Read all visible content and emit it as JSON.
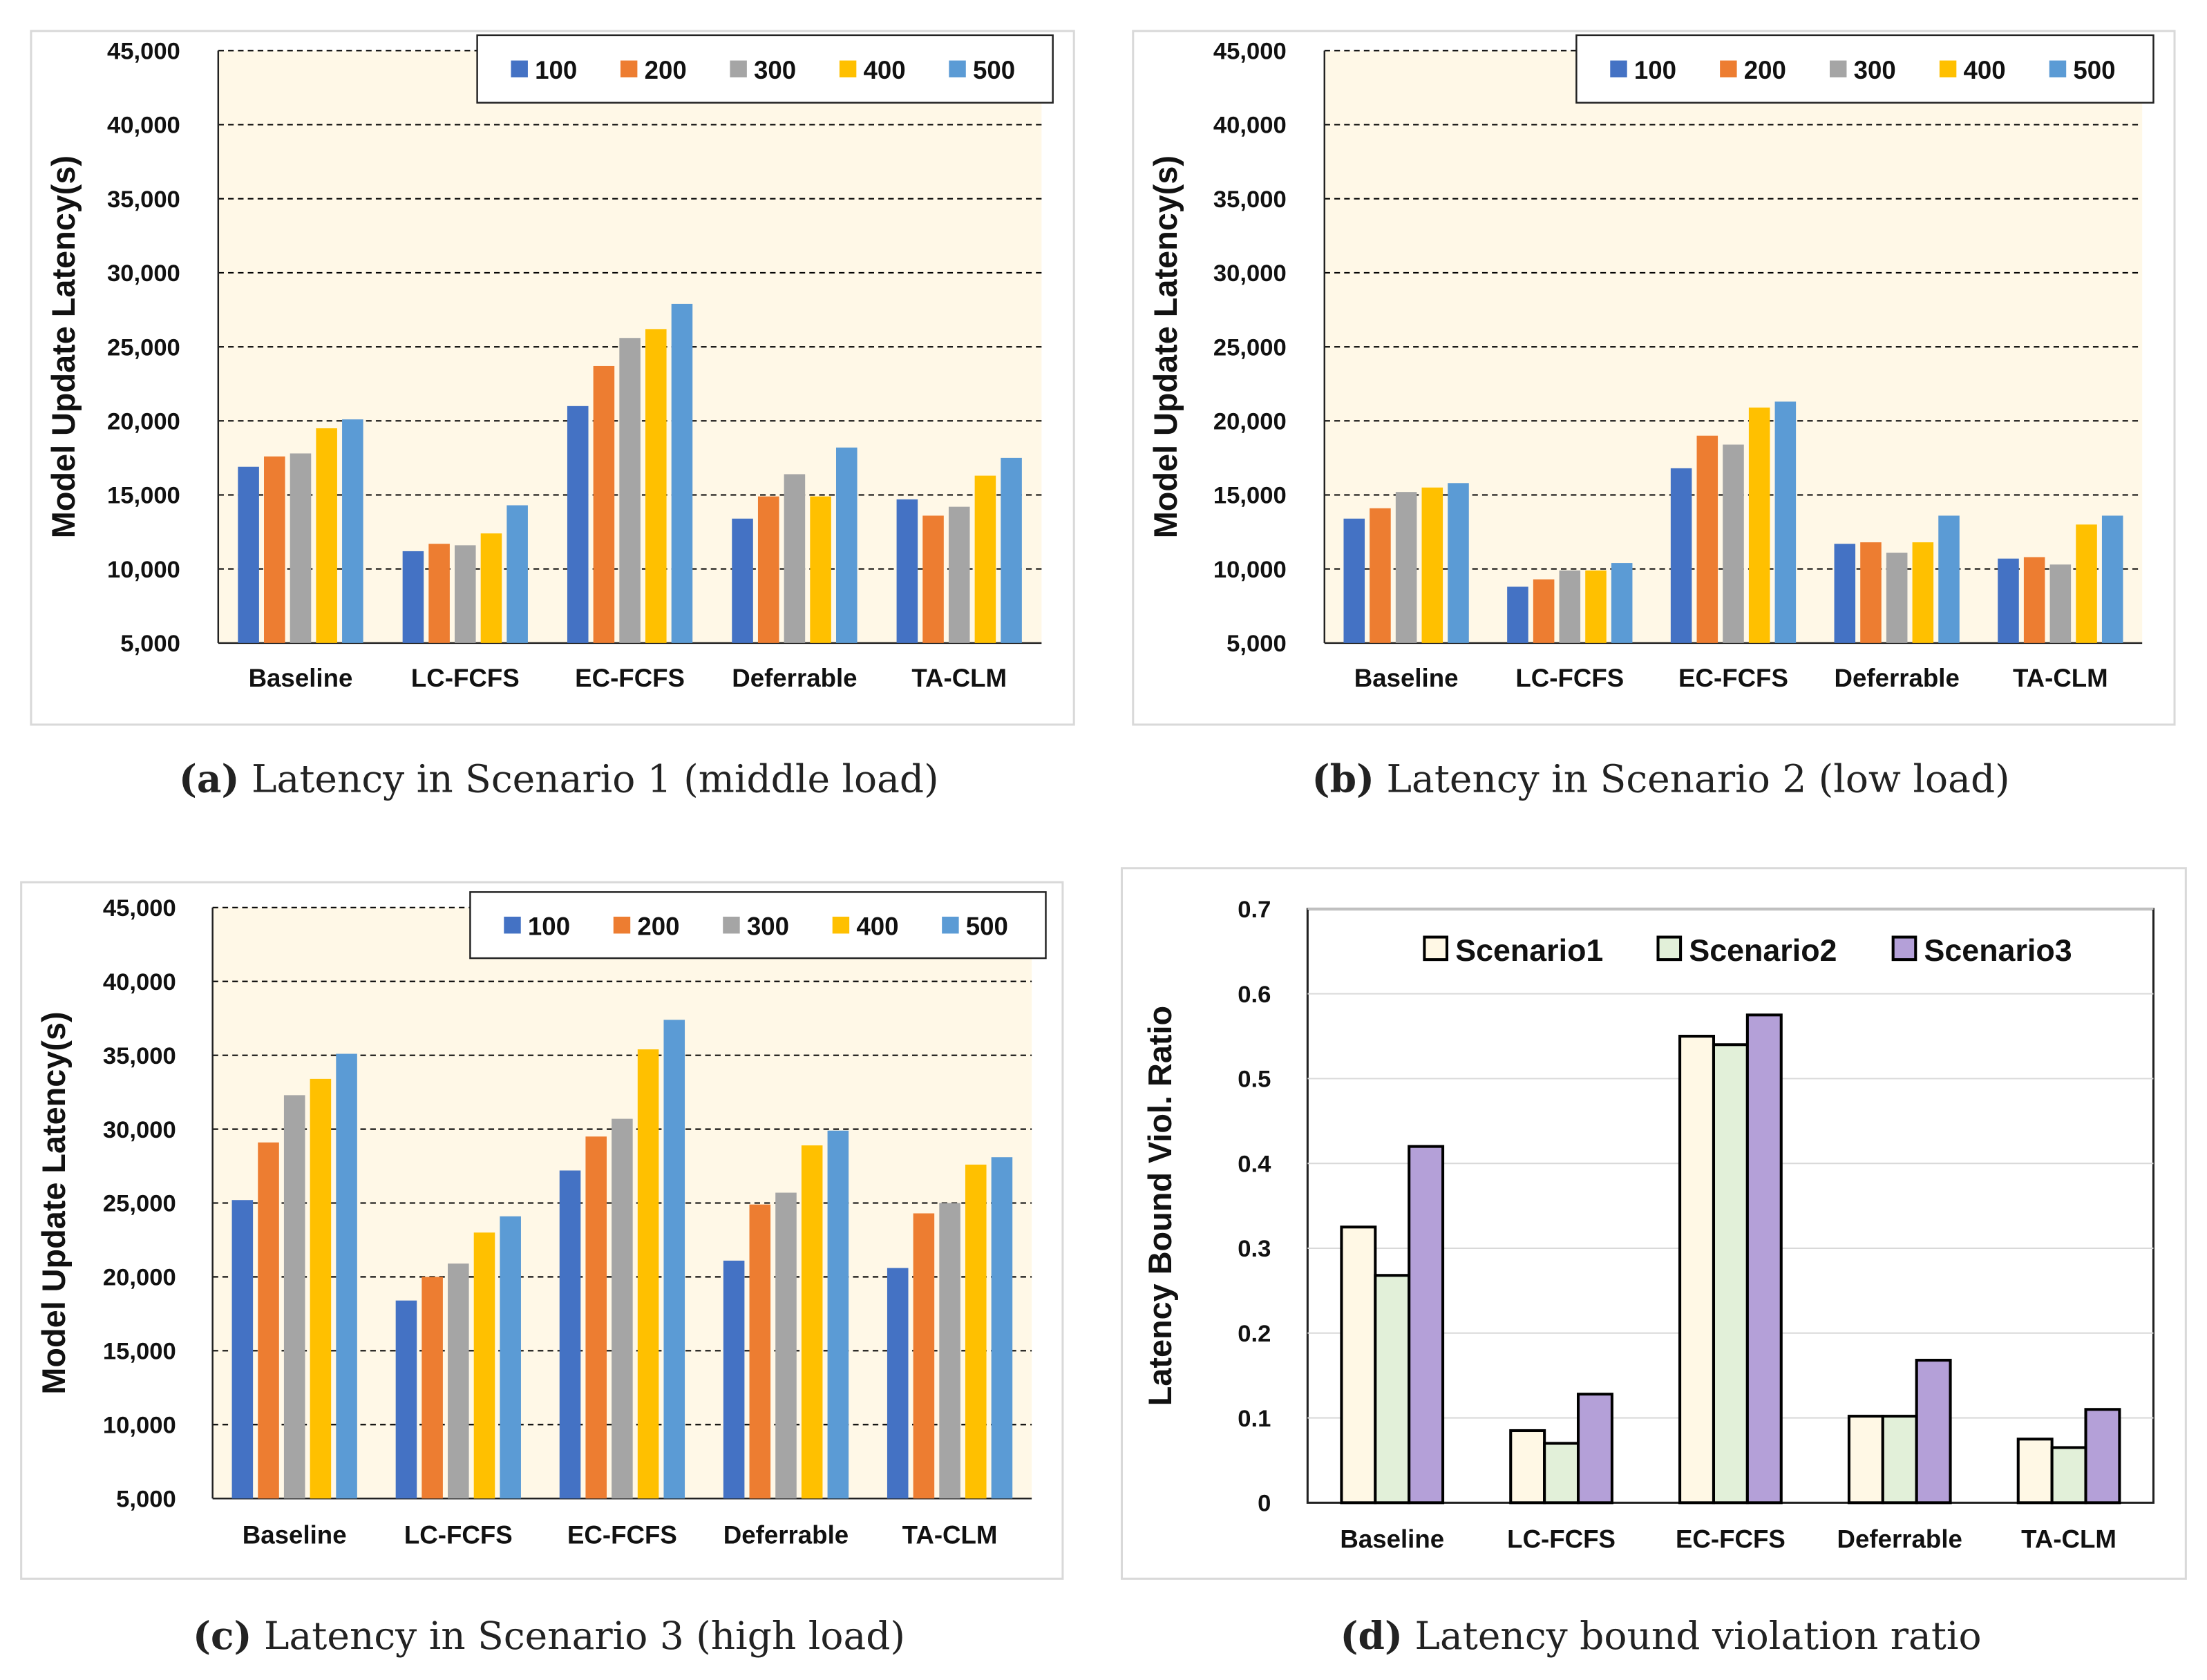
{
  "chart_data": [
    {
      "type": "bar",
      "panel": "a",
      "caption_label": "(a)",
      "caption": "Latency in Scenario 1 (middle load)",
      "ylabel": "Model Update Latency(s)",
      "xlabel": "",
      "ylim": [
        5000,
        45000
      ],
      "yticks": [
        "5,000",
        "10,000",
        "15,000",
        "20,000",
        "25,000",
        "30,000",
        "35,000",
        "40,000",
        "45,000"
      ],
      "grid": "dashed horizontal",
      "legend": "top-right",
      "categories": [
        "Baseline",
        "LC-FCFS",
        "EC-FCFS",
        "Deferrable",
        "TA-CLM"
      ],
      "series": [
        {
          "name": "100",
          "color": "#4472C4",
          "values": [
            16900,
            11200,
            21000,
            13400,
            14700
          ]
        },
        {
          "name": "200",
          "color": "#ED7D31",
          "values": [
            17600,
            11700,
            23700,
            14900,
            13600
          ]
        },
        {
          "name": "300",
          "color": "#A5A5A5",
          "values": [
            17800,
            11600,
            25600,
            16400,
            14200
          ]
        },
        {
          "name": "400",
          "color": "#FFC000",
          "values": [
            19500,
            12400,
            26200,
            14900,
            16300
          ]
        },
        {
          "name": "500",
          "color": "#5B9BD5",
          "values": [
            20100,
            14300,
            27900,
            18200,
            17500
          ]
        }
      ]
    },
    {
      "type": "bar",
      "panel": "b",
      "caption_label": "(b)",
      "caption": "Latency in Scenario 2 (low load)",
      "ylabel": "Model Update Latency(s)",
      "xlabel": "",
      "ylim": [
        5000,
        45000
      ],
      "yticks": [
        "5,000",
        "10,000",
        "15,000",
        "20,000",
        "25,000",
        "30,000",
        "35,000",
        "40,000",
        "45,000"
      ],
      "grid": "dashed horizontal",
      "legend": "top-right",
      "categories": [
        "Baseline",
        "LC-FCFS",
        "EC-FCFS",
        "Deferrable",
        "TA-CLM"
      ],
      "series": [
        {
          "name": "100",
          "color": "#4472C4",
          "values": [
            13400,
            8800,
            16800,
            11700,
            10700
          ]
        },
        {
          "name": "200",
          "color": "#ED7D31",
          "values": [
            14100,
            9300,
            19000,
            11800,
            10800
          ]
        },
        {
          "name": "300",
          "color": "#A5A5A5",
          "values": [
            15200,
            9900,
            18400,
            11100,
            10300
          ]
        },
        {
          "name": "400",
          "color": "#FFC000",
          "values": [
            15500,
            9900,
            20900,
            11800,
            13000
          ]
        },
        {
          "name": "500",
          "color": "#5B9BD5",
          "values": [
            15800,
            10400,
            21300,
            13600,
            13600
          ]
        }
      ]
    },
    {
      "type": "bar",
      "panel": "c",
      "caption_label": "(c)",
      "caption": "Latency in Scenario 3 (high load)",
      "ylabel": "Model Update Latency(s)",
      "xlabel": "",
      "ylim": [
        5000,
        45000
      ],
      "yticks": [
        "5,000",
        "10,000",
        "15,000",
        "20,000",
        "25,000",
        "30,000",
        "35,000",
        "40,000",
        "45,000"
      ],
      "grid": "dashed horizontal",
      "legend": "top-right",
      "categories": [
        "Baseline",
        "LC-FCFS",
        "EC-FCFS",
        "Deferrable",
        "TA-CLM"
      ],
      "series": [
        {
          "name": "100",
          "color": "#4472C4",
          "values": [
            25200,
            18400,
            27200,
            21100,
            20600
          ]
        },
        {
          "name": "200",
          "color": "#ED7D31",
          "values": [
            29100,
            20000,
            29500,
            24900,
            24300
          ]
        },
        {
          "name": "300",
          "color": "#A5A5A5",
          "values": [
            32300,
            20900,
            30700,
            25700,
            25000
          ]
        },
        {
          "name": "400",
          "color": "#FFC000",
          "values": [
            33400,
            23000,
            35400,
            28900,
            27600
          ]
        },
        {
          "name": "500",
          "color": "#5B9BD5",
          "values": [
            35100,
            24100,
            37400,
            29900,
            28100
          ]
        }
      ]
    },
    {
      "type": "bar",
      "panel": "d",
      "caption_label": "(d)",
      "caption": "Latency bound violation ratio",
      "ylabel": "Latency Bound Viol. Ratio",
      "xlabel": "",
      "ylim": [
        0,
        0.7
      ],
      "yticks": [
        "0",
        "0.1",
        "0.2",
        "0.3",
        "0.4",
        "0.5",
        "0.6",
        "0.7"
      ],
      "grid": "solid horizontal",
      "legend": "top",
      "categories": [
        "Baseline",
        "LC-FCFS",
        "EC-FCFS",
        "Deferrable",
        "TA-CLM"
      ],
      "series": [
        {
          "name": "Scenario1",
          "color": "#FFF8E5",
          "values": [
            0.325,
            0.085,
            0.55,
            0.102,
            0.075
          ]
        },
        {
          "name": "Scenario2",
          "color": "#E2F0D9",
          "values": [
            0.268,
            0.07,
            0.54,
            0.102,
            0.065
          ]
        },
        {
          "name": "Scenario3",
          "color": "#B4A0D8",
          "values": [
            0.42,
            0.128,
            0.575,
            0.168,
            0.11
          ]
        }
      ]
    }
  ]
}
